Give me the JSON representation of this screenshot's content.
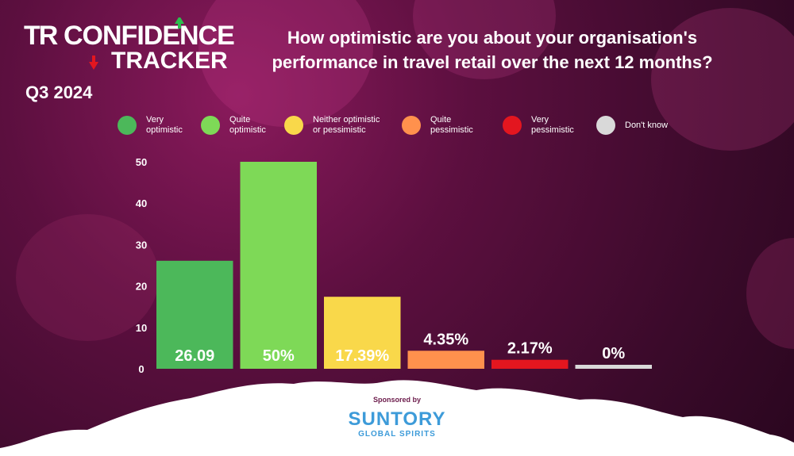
{
  "brand": {
    "logo_tr": "TR",
    "logo_confidence": "CONFIDENCE",
    "logo_tracker": "TRACKER",
    "quarter": "Q3 2024"
  },
  "chart_data": {
    "type": "bar",
    "title": "How optimistic are you about your organisation's performance in travel retail over the next 12 months?",
    "categories": [
      "Very optimistic",
      "Quite optimistic",
      "Neither optimistic or pessimistic",
      "Quite pessimistic",
      "Very pessimistic",
      "Don't know"
    ],
    "values": [
      26.09,
      50,
      17.39,
      4.35,
      2.17,
      0
    ],
    "data_labels": [
      "26.09",
      "50%",
      "17.39%",
      "4.35%",
      "2.17%",
      "0%"
    ],
    "colors": [
      "#4cb85a",
      "#7ed957",
      "#f9d84a",
      "#ff914d",
      "#e3161f",
      "#d9d9d9"
    ],
    "yticks": [
      0,
      10,
      20,
      30,
      40,
      50
    ],
    "ylim": [
      0,
      50
    ],
    "xlabel": "",
    "ylabel": "",
    "legend_position": "top",
    "grid": false
  },
  "legend": [
    {
      "line1": "Very",
      "line2": "optimistic"
    },
    {
      "line1": "Quite",
      "line2": "optimistic"
    },
    {
      "line1": "Neither optimistic",
      "line2": "or pessimistic"
    },
    {
      "line1": "Quite",
      "line2": "pessimistic"
    },
    {
      "line1": "Very",
      "line2": "pessimistic"
    },
    {
      "line1": "Don't know",
      "line2": ""
    }
  ],
  "sponsor": {
    "sponsored_by": "Sponsored by",
    "name": "SUNTORY",
    "subtitle": "GLOBAL SPIRITS"
  }
}
